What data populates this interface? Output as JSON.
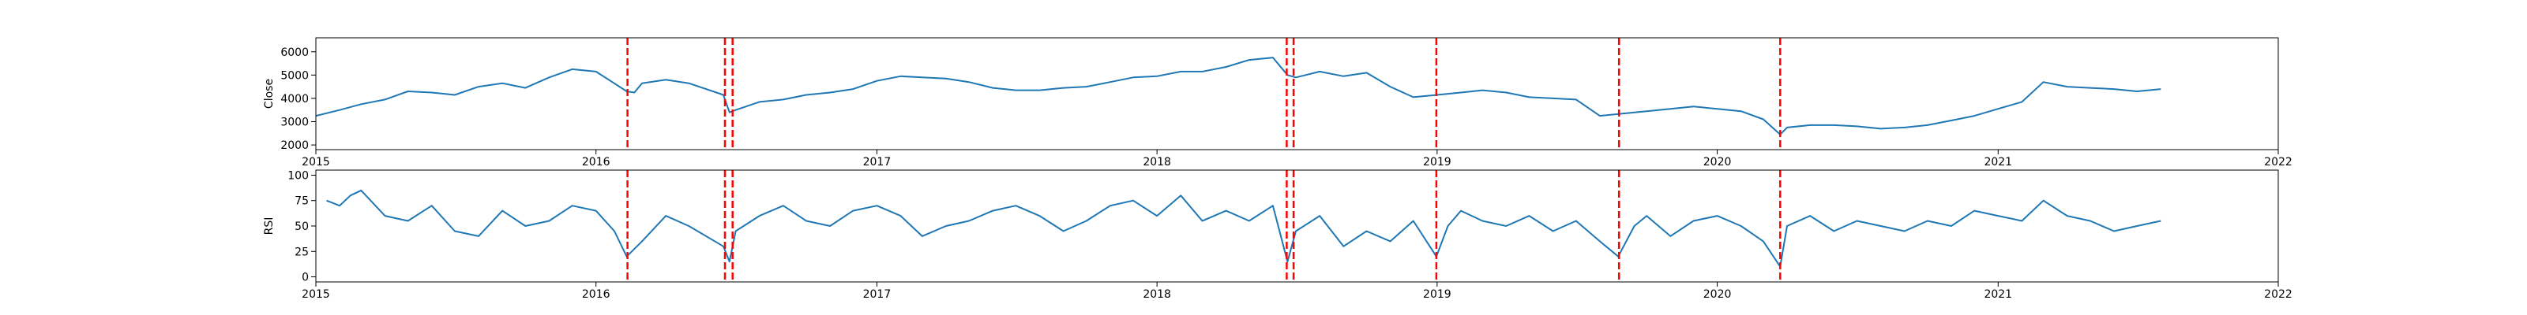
{
  "colors": {
    "series": "#1f77b4",
    "event_line": "#ff0000",
    "axes": "#000000",
    "background": "#ffffff"
  },
  "chart_data": [
    {
      "type": "line",
      "title": "",
      "xlabel": "",
      "ylabel": "Close",
      "xlim": [
        "2015-01-01",
        "2022-01-01"
      ],
      "ylim": [
        1800,
        6600
      ],
      "xticks": [
        "2015",
        "2016",
        "2017",
        "2018",
        "2019",
        "2020",
        "2021",
        "2022"
      ],
      "yticks": [
        2000,
        3000,
        4000,
        5000,
        6000
      ],
      "grid": false,
      "series": [
        {
          "x": [
            "2015-01-01",
            "2015-02-01",
            "2015-03-01",
            "2015-04-01",
            "2015-05-01",
            "2015-06-01",
            "2015-07-01",
            "2015-08-01",
            "2015-09-01",
            "2015-10-01",
            "2015-11-01",
            "2015-12-01",
            "2016-01-01",
            "2016-02-10",
            "2016-02-20",
            "2016-03-01",
            "2016-04-01",
            "2016-05-01",
            "2016-06-15",
            "2016-06-23",
            "2016-07-01",
            "2016-08-01",
            "2016-09-01",
            "2016-10-01",
            "2016-11-01",
            "2016-12-01",
            "2017-01-01",
            "2017-02-01",
            "2017-03-01",
            "2017-04-01",
            "2017-05-01",
            "2017-06-01",
            "2017-07-01",
            "2017-08-01",
            "2017-09-01",
            "2017-10-01",
            "2017-11-01",
            "2017-12-01",
            "2018-01-01",
            "2018-02-01",
            "2018-03-01",
            "2018-04-01",
            "2018-05-01",
            "2018-06-01",
            "2018-06-20",
            "2018-07-01",
            "2018-08-01",
            "2018-09-01",
            "2018-10-01",
            "2018-11-01",
            "2018-12-01",
            "2019-01-01",
            "2019-02-01",
            "2019-03-01",
            "2019-04-01",
            "2019-05-01",
            "2019-06-01",
            "2019-07-01",
            "2019-08-01",
            "2019-09-01",
            "2019-10-01",
            "2019-11-01",
            "2019-12-01",
            "2020-01-01",
            "2020-02-01",
            "2020-03-01",
            "2020-03-23",
            "2020-04-01",
            "2020-05-01",
            "2020-06-01",
            "2020-07-01",
            "2020-08-01",
            "2020-09-01",
            "2020-10-01",
            "2020-11-01",
            "2020-12-01",
            "2021-01-01",
            "2021-02-01",
            "2021-03-01",
            "2021-04-01",
            "2021-05-01",
            "2021-06-01",
            "2021-07-01",
            "2021-08-01"
          ],
          "y": [
            3250,
            3500,
            3750,
            3950,
            4300,
            4250,
            4150,
            4500,
            4650,
            4450,
            4900,
            5250,
            5150,
            4300,
            4250,
            4650,
            4800,
            4650,
            4150,
            3400,
            3500,
            3850,
            3950,
            4150,
            4250,
            4400,
            4750,
            4950,
            4900,
            4850,
            4700,
            4450,
            4350,
            4350,
            4450,
            4500,
            4700,
            4900,
            4950,
            5150,
            5150,
            5350,
            5650,
            5750,
            5000,
            4900,
            5150,
            4950,
            5100,
            4500,
            4050,
            4150,
            4250,
            4350,
            4250,
            4050,
            4000,
            3950,
            3250,
            3350,
            3450,
            3550,
            3650,
            3550,
            3450,
            3100,
            2450,
            2750,
            2850,
            2850,
            2800,
            2700,
            2750,
            2850,
            3050,
            3250,
            3550,
            3850,
            4700,
            4500,
            4450,
            4400,
            4300,
            4400
          ]
        }
      ]
    },
    {
      "type": "line",
      "title": "",
      "xlabel": "",
      "ylabel": "RSI",
      "xlim": [
        "2015-01-01",
        "2022-01-01"
      ],
      "ylim": [
        -5,
        105
      ],
      "xticks": [
        "2015",
        "2016",
        "2017",
        "2018",
        "2019",
        "2020",
        "2021",
        "2022"
      ],
      "yticks": [
        0,
        25,
        50,
        75,
        100
      ],
      "grid": false,
      "series": [
        {
          "x": [
            "2015-01-15",
            "2015-02-01",
            "2015-02-15",
            "2015-03-01",
            "2015-04-01",
            "2015-05-01",
            "2015-06-01",
            "2015-07-01",
            "2015-08-01",
            "2015-09-01",
            "2015-10-01",
            "2015-11-01",
            "2015-12-01",
            "2016-01-01",
            "2016-01-25",
            "2016-02-10",
            "2016-03-01",
            "2016-04-01",
            "2016-05-01",
            "2016-06-15",
            "2016-06-23",
            "2016-07-01",
            "2016-08-01",
            "2016-09-01",
            "2016-10-01",
            "2016-11-01",
            "2016-12-01",
            "2017-01-01",
            "2017-02-01",
            "2017-03-01",
            "2017-04-01",
            "2017-05-01",
            "2017-06-01",
            "2017-07-01",
            "2017-08-01",
            "2017-09-01",
            "2017-10-01",
            "2017-11-01",
            "2017-12-01",
            "2018-01-01",
            "2018-02-01",
            "2018-03-01",
            "2018-04-01",
            "2018-05-01",
            "2018-06-01",
            "2018-06-20",
            "2018-07-01",
            "2018-08-01",
            "2018-09-01",
            "2018-10-01",
            "2018-11-01",
            "2018-12-01",
            "2018-12-31",
            "2019-01-15",
            "2019-02-01",
            "2019-03-01",
            "2019-04-01",
            "2019-05-01",
            "2019-06-01",
            "2019-07-01",
            "2019-08-01",
            "2019-08-25",
            "2019-09-15",
            "2019-10-01",
            "2019-11-01",
            "2019-12-01",
            "2020-01-01",
            "2020-02-01",
            "2020-03-01",
            "2020-03-23",
            "2020-04-01",
            "2020-05-01",
            "2020-06-01",
            "2020-07-01",
            "2020-08-01",
            "2020-09-01",
            "2020-10-01",
            "2020-11-01",
            "2020-12-01",
            "2021-01-01",
            "2021-02-01",
            "2021-03-01",
            "2021-04-01",
            "2021-05-01",
            "2021-06-01",
            "2021-07-01",
            "2021-08-01"
          ],
          "y": [
            75,
            70,
            80,
            85,
            60,
            55,
            70,
            45,
            40,
            65,
            50,
            55,
            70,
            65,
            45,
            20,
            35,
            60,
            50,
            30,
            15,
            45,
            60,
            70,
            55,
            50,
            65,
            70,
            60,
            40,
            50,
            55,
            65,
            70,
            60,
            45,
            55,
            70,
            75,
            60,
            80,
            55,
            65,
            55,
            70,
            15,
            45,
            60,
            30,
            45,
            35,
            55,
            20,
            50,
            65,
            55,
            50,
            60,
            45,
            55,
            35,
            20,
            50,
            60,
            40,
            55,
            60,
            50,
            35,
            10,
            50,
            60,
            45,
            55,
            50,
            45,
            55,
            50,
            65,
            60,
            55,
            75,
            60,
            55,
            45,
            50,
            55
          ]
        }
      ]
    }
  ],
  "events": [
    "2016-02-11",
    "2016-06-17",
    "2016-06-27",
    "2018-06-19",
    "2018-06-28",
    "2018-12-31",
    "2019-08-26",
    "2020-03-23"
  ]
}
